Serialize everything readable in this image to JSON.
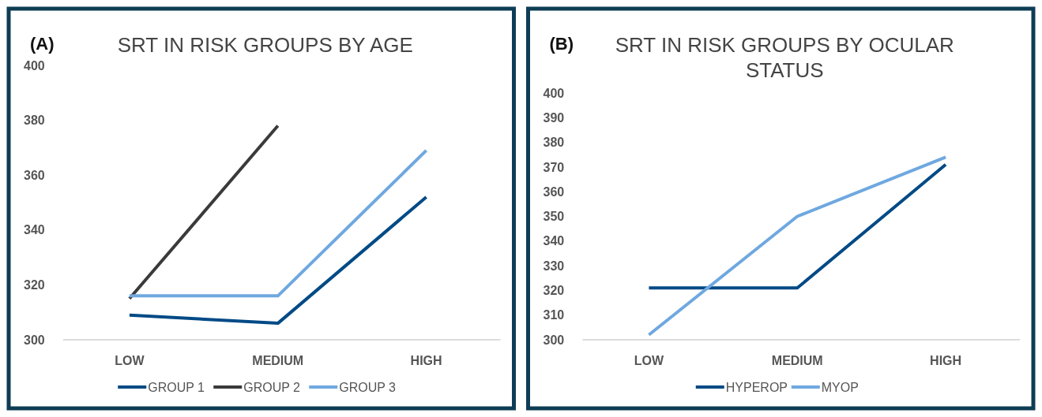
{
  "chart_data": [
    {
      "type": "line",
      "title": "SRT IN RISK GROUPS BY AGE",
      "annotations": [
        "(A)"
      ],
      "categories": [
        "LOW",
        "MEDIUM",
        "HIGH"
      ],
      "ylim": [
        300,
        400
      ],
      "yticks": [
        300,
        320,
        340,
        360,
        380,
        400
      ],
      "legend": "bottom",
      "series": [
        {
          "name": "GROUP 1",
          "color": "#004a86",
          "values": [
            309,
            306,
            352
          ]
        },
        {
          "name": "GROUP 2",
          "color": "#3a3a3a",
          "values": [
            315,
            378,
            null
          ]
        },
        {
          "name": "GROUP 3",
          "color": "#6fa8e0",
          "values": [
            316,
            316,
            369
          ]
        }
      ]
    },
    {
      "type": "line",
      "title": "SRT IN RISK GROUPS BY OCULAR STATUS",
      "annotations": [
        "(B)"
      ],
      "categories": [
        "LOW",
        "MEDIUM",
        "HIGH"
      ],
      "ylim": [
        300,
        400
      ],
      "yticks": [
        300,
        310,
        320,
        330,
        340,
        350,
        360,
        370,
        380,
        390,
        400
      ],
      "legend": "bottom",
      "series": [
        {
          "name": "HYPEROP",
          "color": "#004a86",
          "values": [
            321,
            321,
            371
          ]
        },
        {
          "name": "MYOP",
          "color": "#6fa8e0",
          "values": [
            302,
            350,
            374
          ]
        }
      ]
    }
  ]
}
